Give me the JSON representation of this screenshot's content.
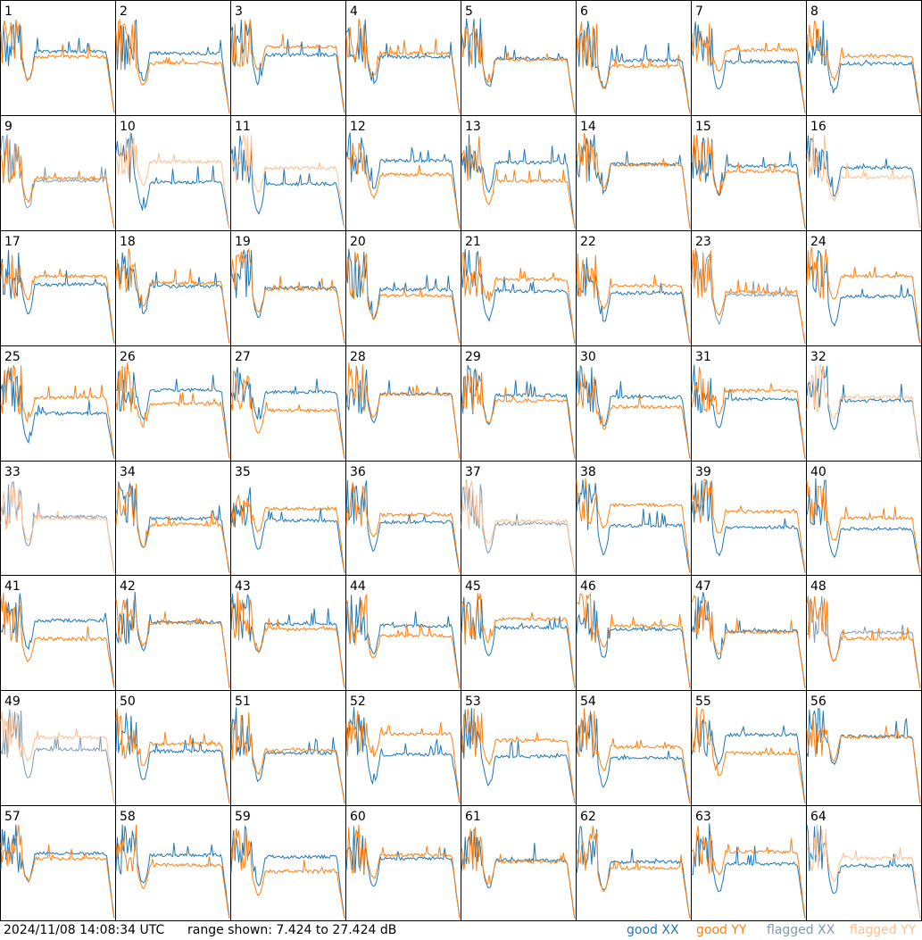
{
  "chart_data": {
    "type": "line",
    "layout": "8x8 grid of small-multiple panels",
    "panel_labels": [
      "1",
      "2",
      "3",
      "4",
      "5",
      "6",
      "7",
      "8",
      "9",
      "10",
      "11",
      "12",
      "13",
      "14",
      "15",
      "16",
      "17",
      "18",
      "19",
      "20",
      "21",
      "22",
      "23",
      "24",
      "25",
      "26",
      "27",
      "28",
      "29",
      "30",
      "31",
      "32",
      "33",
      "34",
      "35",
      "36",
      "37",
      "38",
      "39",
      "40",
      "41",
      "42",
      "43",
      "44",
      "45",
      "46",
      "47",
      "48",
      "49",
      "50",
      "51",
      "52",
      "53",
      "54",
      "55",
      "56",
      "57",
      "58",
      "59",
      "60",
      "61",
      "62",
      "63",
      "64"
    ],
    "series": [
      {
        "name": "good XX",
        "color": "#1f77b4"
      },
      {
        "name": "good YY",
        "color": "#ff7f0e"
      },
      {
        "name": "flagged XX",
        "color": "#7f99b3"
      },
      {
        "name": "flagged YY",
        "color": "#ffbf8e"
      }
    ],
    "flagged_xx_panels": [
      9,
      23,
      33,
      37,
      48,
      49
    ],
    "flagged_yy_panels": [
      10,
      11,
      16,
      32,
      33,
      37,
      49,
      64
    ],
    "range_db": [
      7.424,
      27.424
    ],
    "grid": false,
    "legend_position": "bottom-right"
  },
  "footer": {
    "timestamp": "2024/11/08 14:08:34 UTC",
    "range_text": "range shown: 7.424 to 27.424 dB"
  },
  "legend": {
    "good_xx": "good XX",
    "good_yy": "good YY",
    "flagged_xx": "flagged XX",
    "flagged_yy": "flagged YY",
    "colors": {
      "good_xx": "#1f77b4",
      "good_yy": "#ff7f0e",
      "flagged_xx": "#7f99b3",
      "flagged_yy": "#ffbf8e"
    }
  }
}
